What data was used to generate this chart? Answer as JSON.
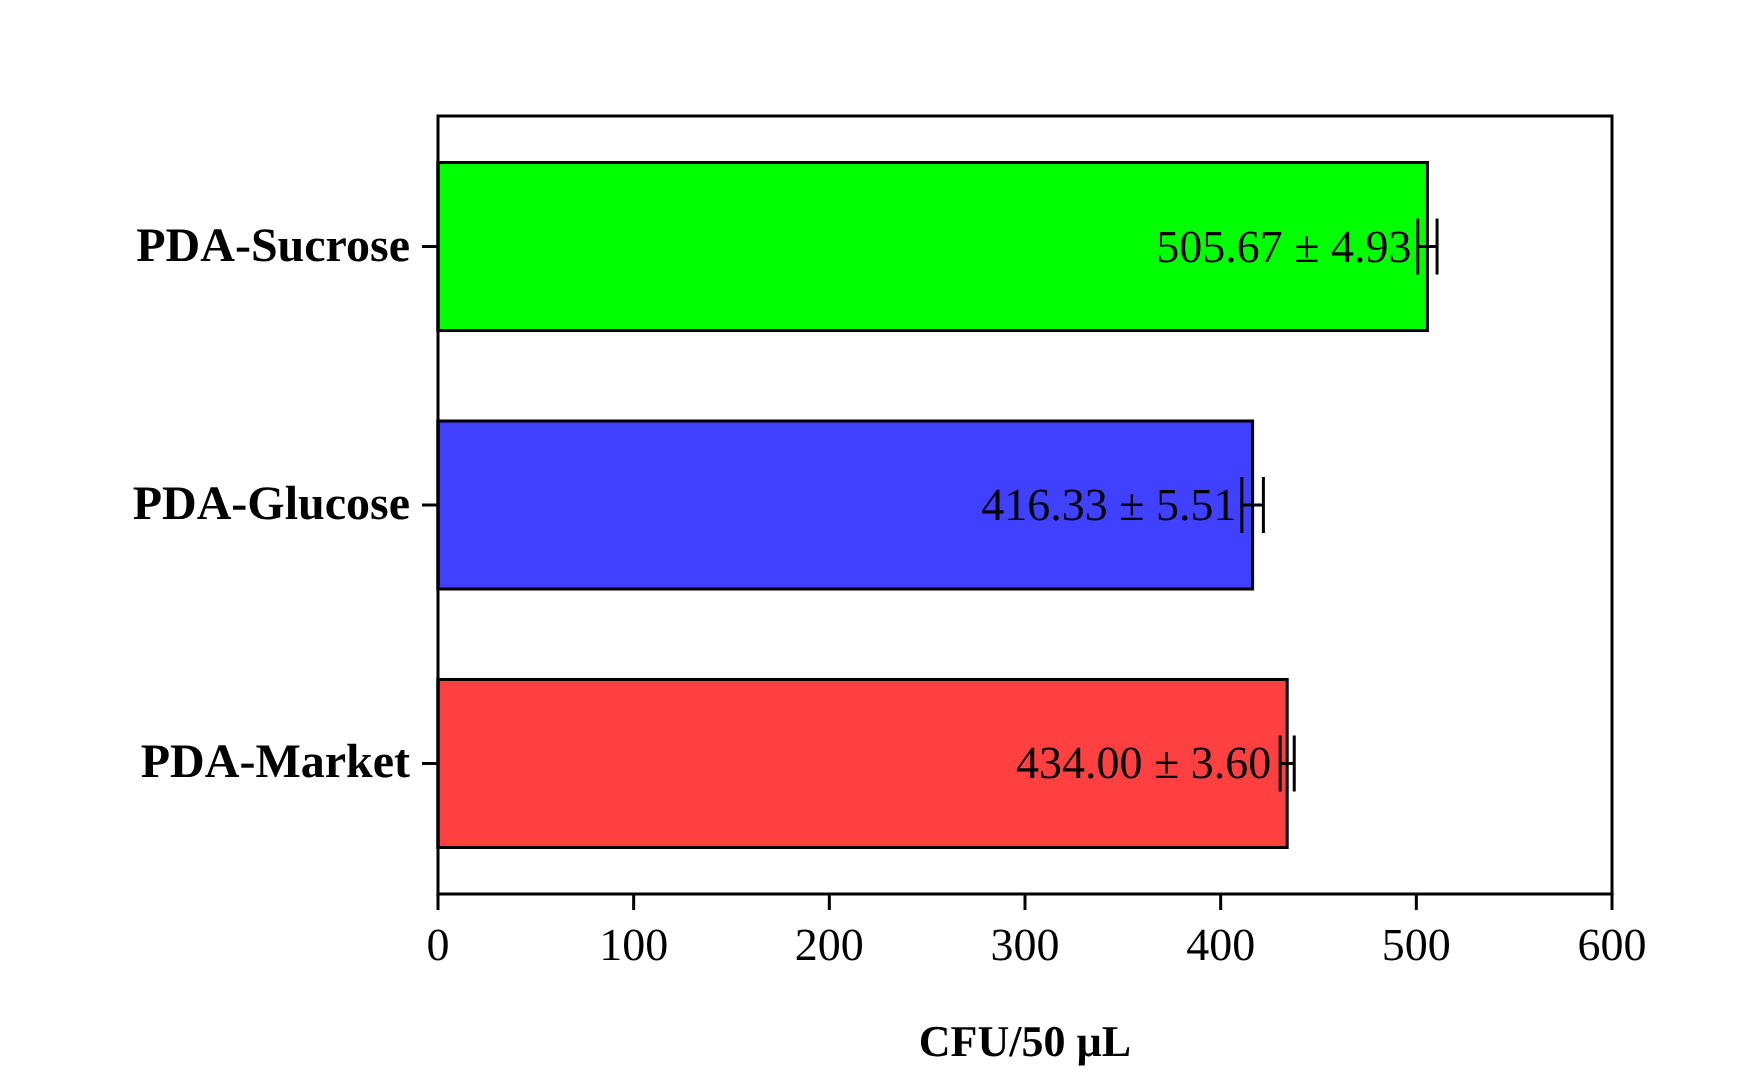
{
  "chart_data": {
    "type": "bar",
    "orientation": "horizontal",
    "xlabel": "CFU/50 µL",
    "categories": [
      "PDA-Sucrose",
      "PDA-Glucose",
      "PDA-Market"
    ],
    "values": [
      505.67,
      416.33,
      434.0
    ],
    "errors": [
      4.93,
      5.51,
      3.6
    ],
    "colors": [
      "#00ff00",
      "#4040ff",
      "#ff4040"
    ],
    "value_labels": [
      "505.67 ± 4.93",
      "416.33 ± 5.51",
      "434.00 ± 3.60"
    ],
    "xlim": [
      0,
      600
    ],
    "xticks": [
      0,
      100,
      200,
      300,
      400,
      500,
      600
    ],
    "grid": false
  }
}
